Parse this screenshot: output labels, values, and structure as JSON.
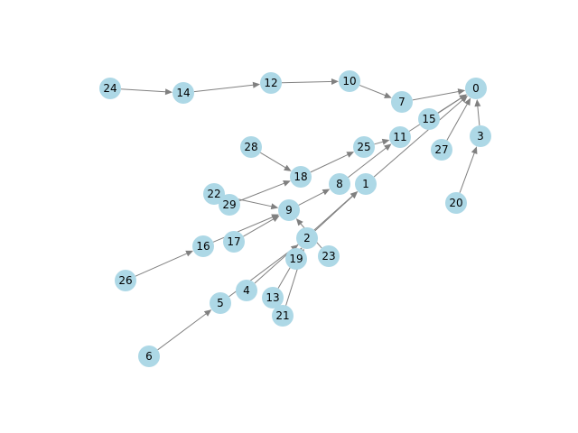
{
  "graph": {
    "node_color": "#add8e6",
    "edge_color": "#808080",
    "nodes": [
      "0",
      "1",
      "2",
      "3",
      "4",
      "5",
      "6",
      "7",
      "8",
      "9",
      "10",
      "11",
      "12",
      "13",
      "14",
      "15",
      "16",
      "17",
      "18",
      "19",
      "20",
      "21",
      "22",
      "23",
      "24",
      "25",
      "26",
      "27",
      "28",
      "29"
    ],
    "edges": [
      [
        "24",
        "14"
      ],
      [
        "14",
        "12"
      ],
      [
        "12",
        "10"
      ],
      [
        "10",
        "7"
      ],
      [
        "7",
        "0"
      ],
      [
        "15",
        "0"
      ],
      [
        "11",
        "0"
      ],
      [
        "27",
        "0"
      ],
      [
        "3",
        "0"
      ],
      [
        "20",
        "3"
      ],
      [
        "25",
        "11"
      ],
      [
        "8",
        "11"
      ],
      [
        "1",
        "0"
      ],
      [
        "28",
        "18"
      ],
      [
        "18",
        "25"
      ],
      [
        "29",
        "18"
      ],
      [
        "22",
        "9"
      ],
      [
        "17",
        "9"
      ],
      [
        "16",
        "9"
      ],
      [
        "26",
        "16"
      ],
      [
        "9",
        "8"
      ],
      [
        "23",
        "9"
      ],
      [
        "2",
        "1"
      ],
      [
        "4",
        "1"
      ],
      [
        "5",
        "2"
      ],
      [
        "6",
        "5"
      ],
      [
        "13",
        "2"
      ],
      [
        "21",
        "2"
      ],
      [
        "19",
        "2"
      ]
    ]
  }
}
